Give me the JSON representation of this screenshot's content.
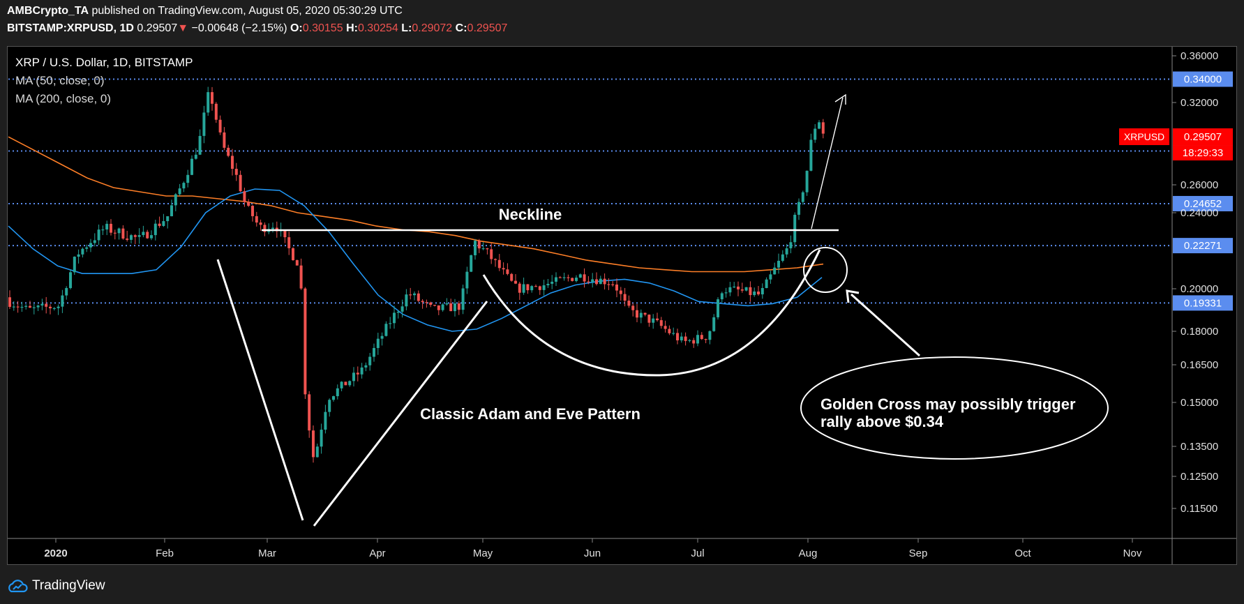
{
  "header": {
    "line1": {
      "author": "AMBCrypto_TA",
      "published": "published on TradingView.com, August 05, 2020 05:30:29 UTC"
    },
    "line2": {
      "symbol": "BITSTAMP:XRPUSD, 1D",
      "last": "0.29507",
      "arrow": "▼",
      "change": "−0.00648 (−2.15%)",
      "o_label": "O:",
      "o": "0.30155",
      "h_label": "H:",
      "h": "0.30254",
      "l_label": "L:",
      "l": "0.29072",
      "c_label": "C:",
      "c": "0.29507"
    }
  },
  "legend": {
    "title": "XRP / U.S. Dollar, 1D, BITSTAMP",
    "ma1": "MA (50, close, 0)",
    "ma2": "MA (200, close, 0)"
  },
  "footer": {
    "brand": "TradingView"
  },
  "chart_data": {
    "type": "candlestick",
    "price_axis": {
      "ticks": [
        "0.36000",
        "0.32000",
        "0.26000",
        "0.24000",
        "0.20000",
        "0.18000",
        "0.16500",
        "0.15000",
        "0.13500",
        "0.12500",
        "0.11500"
      ]
    },
    "time_axis": {
      "ticks": [
        "2020",
        "Feb",
        "Mar",
        "Apr",
        "May",
        "Jun",
        "Jul",
        "Aug",
        "Sep",
        "Oct",
        "Nov"
      ]
    },
    "horizontal_levels": [
      {
        "value": "0.34000"
      },
      {
        "value": "0.28465"
      },
      {
        "value": "0.24652"
      },
      {
        "value": "0.22271"
      },
      {
        "value": "0.19331"
      }
    ],
    "current_price": {
      "symbol": "XRPUSD",
      "value": "0.29507",
      "countdown": "18:29:33"
    },
    "annotations": {
      "neckline": "Neckline",
      "pattern": "Classic Adam and Eve Pattern",
      "callout": [
        "Golden Cross may possibly trigger",
        "rally above $0.34"
      ]
    },
    "colors": {
      "up": "#26a69a",
      "down": "#ef5350",
      "ma50": "#2196f3",
      "ma200": "#ff7f27",
      "level": "#5b8def",
      "current": "#ff0000"
    },
    "series": [
      {
        "name": "MA (50, close, 0)",
        "values": [
          0.233,
          0.221,
          0.212,
          0.208,
          0.208,
          0.208,
          0.21,
          0.222,
          0.24,
          0.252,
          0.257,
          0.256,
          0.245,
          0.23,
          0.213,
          0.197,
          0.188,
          0.183,
          0.18,
          0.181,
          0.186,
          0.192,
          0.198,
          0.202,
          0.204,
          0.205,
          0.203,
          0.199,
          0.194,
          0.193,
          0.192,
          0.193,
          0.196,
          0.206
        ]
      },
      {
        "name": "MA (200, close, 0)",
        "values": [
          0.295,
          0.285,
          0.275,
          0.265,
          0.258,
          0.255,
          0.252,
          0.252,
          0.25,
          0.248,
          0.245,
          0.24,
          0.238,
          0.236,
          0.233,
          0.231,
          0.23,
          0.228,
          0.225,
          0.223,
          0.221,
          0.218,
          0.215,
          0.213,
          0.211,
          0.21,
          0.209,
          0.209,
          0.209,
          0.21,
          0.211,
          0.213
        ]
      }
    ]
  }
}
